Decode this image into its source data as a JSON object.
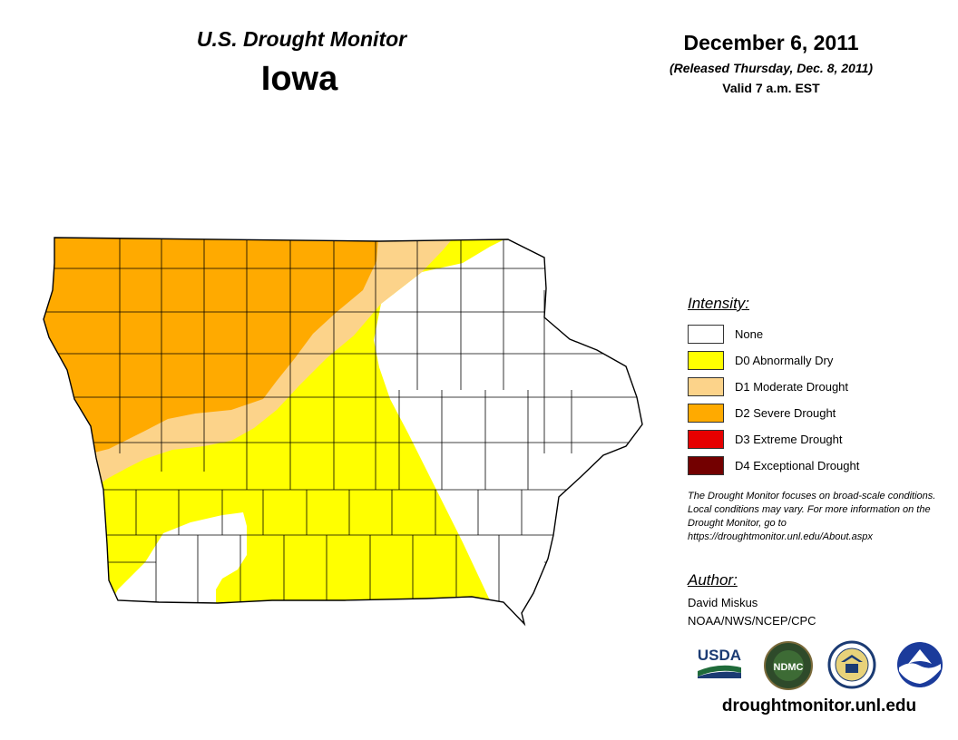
{
  "header": {
    "supertitle": "U.S. Drought Monitor",
    "state": "Iowa",
    "date": "December 6, 2011",
    "released": "(Released Thursday, Dec. 8, 2011)",
    "valid": "Valid 7 a.m. EST"
  },
  "legend": {
    "title": "Intensity:",
    "items": [
      {
        "label": "None",
        "color": "#ffffff"
      },
      {
        "label": "D0 Abnormally Dry",
        "color": "#ffff00"
      },
      {
        "label": "D1 Moderate Drought",
        "color": "#fcd38a"
      },
      {
        "label": "D2 Severe Drought",
        "color": "#ffaa00"
      },
      {
        "label": "D3 Extreme Drought",
        "color": "#e60000"
      },
      {
        "label": "D4 Exceptional Drought",
        "color": "#730000"
      }
    ]
  },
  "note": "The Drought Monitor focuses on broad-scale conditions. Local conditions may vary. For more information on the Drought Monitor, go to https://droughtmonitor.unl.edu/About.aspx",
  "author": {
    "title": "Author:",
    "name": "David Miskus",
    "org": "NOAA/NWS/NCEP/CPC"
  },
  "logos": {
    "usda": "USDA",
    "ndmc": "NDMC",
    "icons": [
      "usda-logo-icon",
      "ndmc-logo-icon",
      "commerce-seal-icon",
      "noaa-logo-icon"
    ]
  },
  "website": "droughtmonitor.unl.edu"
}
